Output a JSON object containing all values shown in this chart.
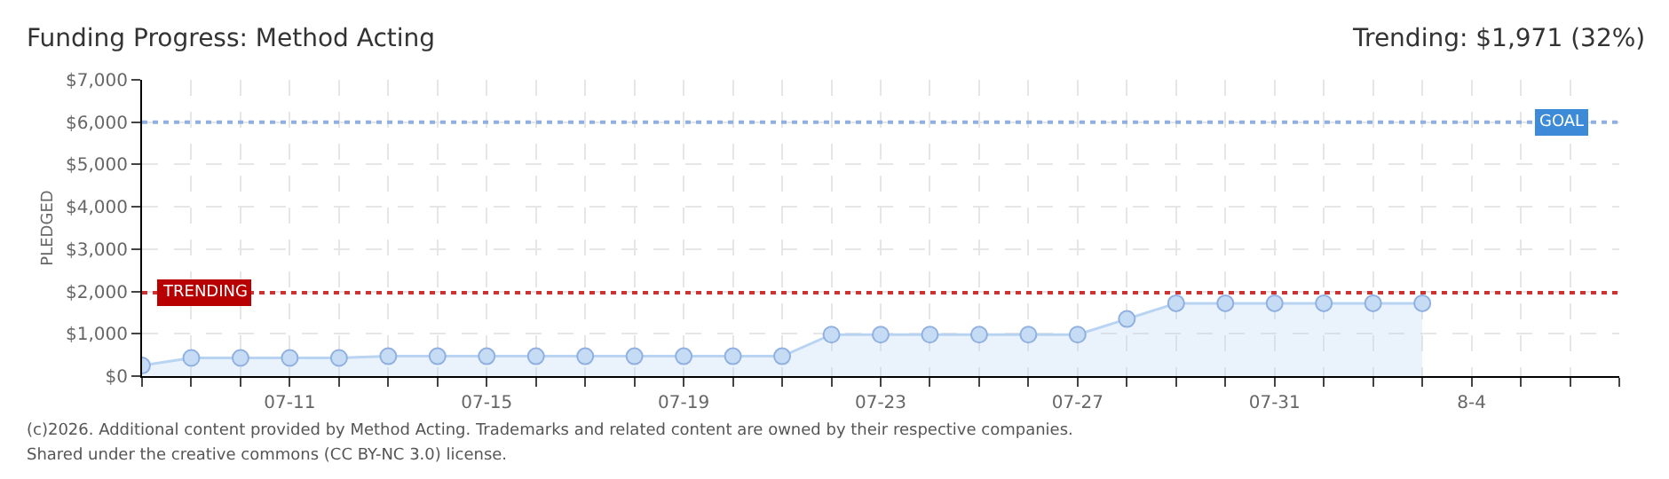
{
  "chart_data": {
    "type": "area",
    "title": "Funding Progress: Method Acting",
    "subtitle": "Trending: $1,971 (32%)",
    "ylabel": "PLEDGED",
    "x": [
      "--07-08",
      "--07-09",
      "--07-10",
      "--07-11",
      "--07-12",
      "--07-13",
      "--07-14",
      "--07-15",
      "--07-16",
      "--07-17",
      "--07-18",
      "--07-19",
      "--07-20",
      "--07-21",
      "--07-22",
      "--07-23",
      "--07-24",
      "--07-25",
      "--07-26",
      "--07-27",
      "--07-28",
      "--07-29",
      "--07-30",
      "--07-31",
      "--08-01",
      "--08-02",
      "--08-03"
    ],
    "series": [
      {
        "color": "#b8d4f2",
        "values": [
          250,
          430,
          430,
          430,
          430,
          470,
          470,
          470,
          470,
          470,
          470,
          470,
          470,
          470,
          980,
          980,
          980,
          980,
          980,
          980,
          1350,
          1720,
          1720,
          1720,
          1720,
          1720,
          1720
        ]
      }
    ],
    "xlim": [
      "--07-08",
      "--08-07"
    ],
    "xticks": [
      {
        "value": "--07-08",
        "label": null
      },
      {
        "value": "--07-09",
        "label": null
      },
      {
        "value": "--07-10",
        "label": null
      },
      {
        "value": "--07-11",
        "label": "07-11"
      },
      {
        "value": "--07-12",
        "label": null
      },
      {
        "value": "--07-13",
        "label": null
      },
      {
        "value": "--07-14",
        "label": null
      },
      {
        "value": "--07-15",
        "label": "07-15"
      },
      {
        "value": "--07-16",
        "label": null
      },
      {
        "value": "--07-17",
        "label": null
      },
      {
        "value": "--07-18",
        "label": null
      },
      {
        "value": "--07-19",
        "label": "07-19"
      },
      {
        "value": "--07-20",
        "label": null
      },
      {
        "value": "--07-21",
        "label": null
      },
      {
        "value": "--07-22",
        "label": null
      },
      {
        "value": "--07-23",
        "label": "07-23"
      },
      {
        "value": "--07-24",
        "label": null
      },
      {
        "value": "--07-25",
        "label": null
      },
      {
        "value": "--07-26",
        "label": null
      },
      {
        "value": "--07-27",
        "label": "07-27"
      },
      {
        "value": "--07-28",
        "label": null
      },
      {
        "value": "--07-29",
        "label": null
      },
      {
        "value": "--07-30",
        "label": null
      },
      {
        "value": "--07-31",
        "label": "07-31"
      },
      {
        "value": "--08-01",
        "label": null
      },
      {
        "value": "--08-02",
        "label": null
      },
      {
        "value": "--08-03",
        "label": null
      },
      {
        "value": "--08-04",
        "label": "8-4"
      },
      {
        "value": "--08-05",
        "label": null
      },
      {
        "value": "--08-06",
        "label": null
      },
      {
        "value": "--08-07",
        "label": null
      }
    ],
    "ylim": [
      0,
      7000
    ],
    "yticks": [
      {
        "value": 0,
        "label": "$0"
      },
      {
        "value": 1000,
        "label": "$1,000"
      },
      {
        "value": 2000,
        "label": "$2,000"
      },
      {
        "value": 3000,
        "label": "$3,000"
      },
      {
        "value": 4000,
        "label": "$4,000"
      },
      {
        "value": 5000,
        "label": "$5,000"
      },
      {
        "value": 6000,
        "label": "$6,000"
      },
      {
        "value": 7000,
        "label": "$7,000"
      }
    ],
    "ref_lines": [
      {
        "axis": "y",
        "value": 6000,
        "label": "GOAL",
        "color": "#8fb0e0",
        "line_style": "dotted"
      },
      {
        "axis": "y",
        "value": 1971,
        "label": "TRENDING",
        "color": "#cc3333",
        "line_style": "dotted"
      }
    ],
    "annotations": [
      "(c)2026. Additional content provided by Method Acting. Trademarks and related content are owned by their respective companies.",
      "Shared under the creative commons (CC BY-NC 3.0) license."
    ],
    "grid": true,
    "legend": false,
    "marker": "circle"
  }
}
